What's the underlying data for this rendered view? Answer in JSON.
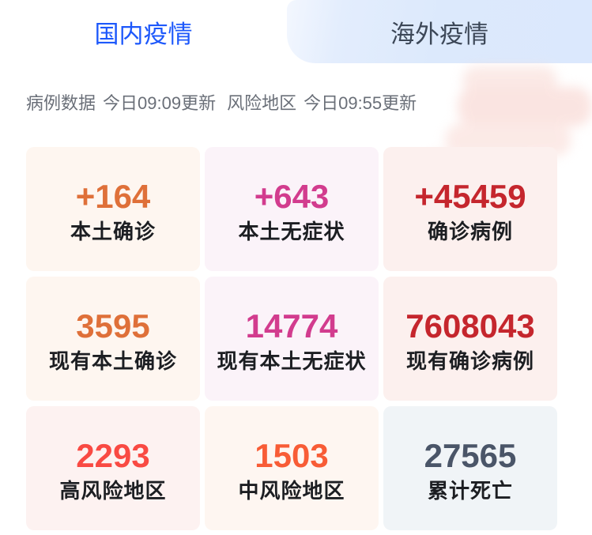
{
  "tabs": [
    {
      "label": "国内疫情",
      "active": true
    },
    {
      "label": "海外疫情",
      "active": false
    }
  ],
  "update_info": {
    "cases_label": "病例数据",
    "cases_time": "今日09:09更新",
    "risk_label": "风险地区",
    "risk_time": "今日09:55更新"
  },
  "stats": [
    {
      "value": "+164",
      "label": "本土确诊",
      "color": "#df7039",
      "bg": "#fef6f0"
    },
    {
      "value": "+643",
      "label": "本土无症状",
      "color": "#d23c8e",
      "bg": "#fbf3f9"
    },
    {
      "value": "+45459",
      "label": "确诊病例",
      "color": "#c5262d",
      "bg": "#fcf0ee"
    },
    {
      "value": "3595",
      "label": "现有本土确诊",
      "color": "#df7039",
      "bg": "#fef6f0"
    },
    {
      "value": "14774",
      "label": "现有本土无症状",
      "color": "#d23c8e",
      "bg": "#fbf3f9"
    },
    {
      "value": "7608043",
      "label": "现有确诊病例",
      "color": "#c5262d",
      "bg": "#fcf0ee"
    },
    {
      "value": "2293",
      "label": "高风险地区",
      "color": "#f94a43",
      "bg": "#fdf2f1"
    },
    {
      "value": "1503",
      "label": "中风险地区",
      "color": "#f85c36",
      "bg": "#fef6f1"
    },
    {
      "value": "27565",
      "label": "累计死亡",
      "color": "#4a5568",
      "bg": "#f0f4f7"
    }
  ],
  "colors": {
    "active_tab_text": "#1d58fb",
    "inactive_tab_text": "#3c4757",
    "inactive_tab_bg": "#dce9fc",
    "update_text": "#6a6f78",
    "label_text": "#1c1e22"
  }
}
